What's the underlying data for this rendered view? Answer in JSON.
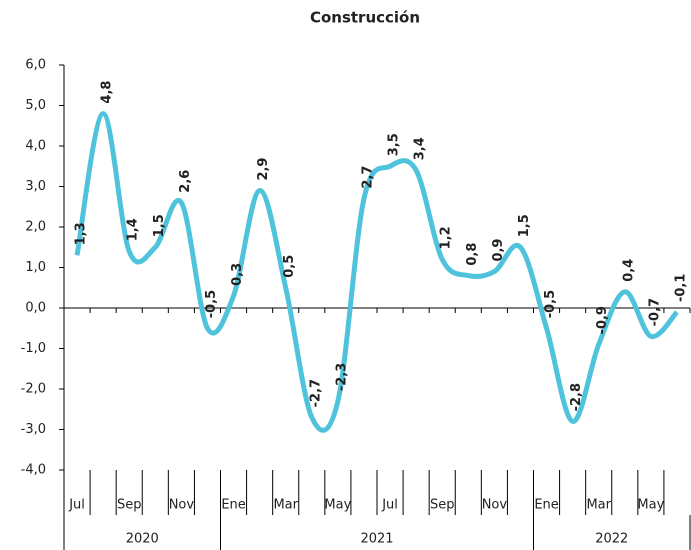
{
  "chart_data": {
    "type": "line",
    "title": "Construcción",
    "categories": [
      "Jul",
      null,
      "Sep",
      null,
      "Nov",
      null,
      "Ene",
      null,
      "Mar",
      null,
      "May",
      null,
      "Jul",
      null,
      "Sep",
      null,
      "Nov",
      null,
      "Ene",
      null,
      "Mar",
      null,
      "May",
      null
    ],
    "groups": [
      {
        "label": "2020",
        "span": 6
      },
      {
        "label": "2021",
        "span": 12
      },
      {
        "label": "2022",
        "span": 6
      }
    ],
    "series": [
      {
        "name": "Construcción",
        "color": "#4fc3dc",
        "values": [
          1.3,
          4.8,
          1.4,
          1.5,
          2.6,
          -0.5,
          0.3,
          2.9,
          0.5,
          -2.7,
          -2.3,
          2.7,
          3.5,
          3.4,
          1.2,
          0.8,
          0.9,
          1.5,
          -0.5,
          -2.8,
          -0.9,
          0.4,
          -0.7,
          -0.1
        ],
        "value_labels": [
          "1,3",
          "4,8",
          "1,4",
          "1,5",
          "2,6",
          "-0,5",
          "0,3",
          "2,9",
          "0,5",
          "-2,7",
          "-2,3",
          "2,7",
          "3,5",
          "3,4",
          "1,2",
          "0,8",
          "0,9",
          "1,5",
          "-0,5",
          "-2,8",
          "-0,9",
          "0,4",
          "-0,7",
          "-0,1"
        ]
      }
    ],
    "ylim": [
      -4,
      6
    ],
    "yticks": [
      {
        "value": -4,
        "label": "-4,0"
      },
      {
        "value": -3,
        "label": "-3,0"
      },
      {
        "value": -2,
        "label": "-2,0"
      },
      {
        "value": -1,
        "label": "-1,0"
      },
      {
        "value": 0,
        "label": "0,0"
      },
      {
        "value": 1,
        "label": "1,0"
      },
      {
        "value": 2,
        "label": "2,0"
      },
      {
        "value": 3,
        "label": "3,0"
      },
      {
        "value": 4,
        "label": "4,0"
      },
      {
        "value": 5,
        "label": "5,0"
      },
      {
        "value": 6,
        "label": "6,0"
      }
    ],
    "grid": false,
    "smooth": true
  }
}
